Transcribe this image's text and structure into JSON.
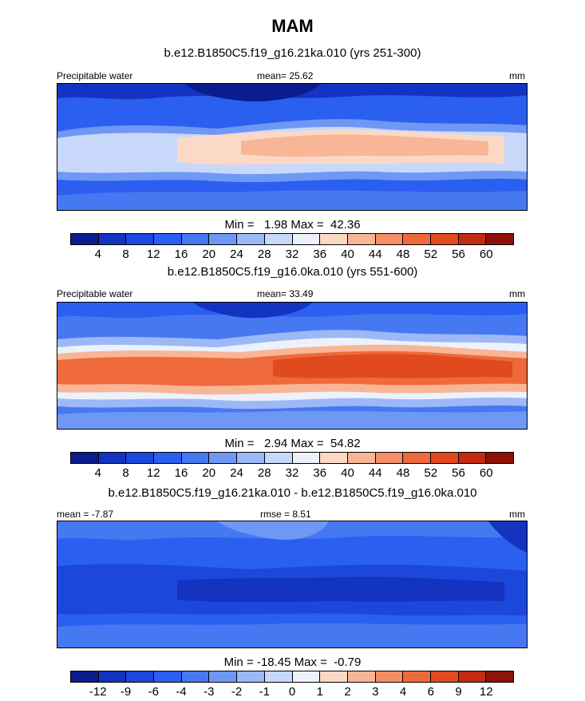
{
  "header": {
    "title": "MAM"
  },
  "units": "mm",
  "panels": [
    {
      "title": "b.e12.B1850C5.f19_g16.21ka.010 (yrs 251-300)",
      "left_label": "Precipitable water",
      "center_label": "mean=  25.62",
      "right_label": "mm",
      "minmax": "Min =   1.98 Max =  42.36"
    },
    {
      "title": "b.e12.B1850C5.f19_g16.0ka.010 (yrs 551-600)",
      "left_label": "Precipitable water",
      "center_label": "mean=  33.49",
      "right_label": "mm",
      "minmax": "Min =   2.94 Max =  54.82"
    },
    {
      "title": "b.e12.B1850C5.f19_g16.21ka.010 - b.e12.B1850C5.f19_g16.0ka.010",
      "left_label": "mean =  -7.87",
      "center_label": "rmse =   8.51",
      "right_label": "mm",
      "minmax": "Min = -18.45 Max =  -0.79"
    }
  ],
  "colorbars": [
    {
      "levels": [
        "4",
        "8",
        "12",
        "16",
        "20",
        "24",
        "28",
        "32",
        "36",
        "40",
        "44",
        "48",
        "52",
        "56",
        "60"
      ],
      "colors": [
        "#0a1c8e",
        "#1333c0",
        "#1b47dc",
        "#2a5ff0",
        "#4678f2",
        "#6f97f4",
        "#9cb8f7",
        "#c8d8fa",
        "#ecf1fc",
        "#fbd9c6",
        "#f8b696",
        "#f48e66",
        "#ee6a3c",
        "#e04a1e",
        "#c22b12",
        "#8e1208"
      ]
    },
    {
      "levels": [
        "4",
        "8",
        "12",
        "16",
        "20",
        "24",
        "28",
        "32",
        "36",
        "40",
        "44",
        "48",
        "52",
        "56",
        "60"
      ],
      "colors": [
        "#0a1c8e",
        "#1333c0",
        "#1b47dc",
        "#2a5ff0",
        "#4678f2",
        "#6f97f4",
        "#9cb8f7",
        "#c8d8fa",
        "#ecf1fc",
        "#fbd9c6",
        "#f8b696",
        "#f48e66",
        "#ee6a3c",
        "#e04a1e",
        "#c22b12",
        "#8e1208"
      ]
    },
    {
      "levels": [
        "-12",
        "-9",
        "-6",
        "-4",
        "-3",
        "-2",
        "-1",
        "0",
        "1",
        "2",
        "3",
        "4",
        "6",
        "9",
        "12"
      ],
      "colors": [
        "#0a1c8e",
        "#1333c0",
        "#1b47dc",
        "#2a5ff0",
        "#4678f2",
        "#6f97f4",
        "#9cb8f7",
        "#c8d8fa",
        "#ecf1fc",
        "#fbd9c6",
        "#f8b696",
        "#f48e66",
        "#ee6a3c",
        "#e04a1e",
        "#c22b12",
        "#8e1208"
      ]
    }
  ],
  "chart_data": [
    {
      "type": "heatmap",
      "title": "b.e12.B1850C5.f19_g16.21ka.010 (yrs 251-300)",
      "variable": "Precipitable water",
      "units": "mm",
      "mean": 25.62,
      "min": 1.98,
      "max": 42.36,
      "contour_levels": [
        4,
        8,
        12,
        16,
        20,
        24,
        28,
        32,
        36,
        40,
        44,
        48,
        52,
        56,
        60
      ]
    },
    {
      "type": "heatmap",
      "title": "b.e12.B1850C5.f19_g16.0ka.010 (yrs 551-600)",
      "variable": "Precipitable water",
      "units": "mm",
      "mean": 33.49,
      "min": 2.94,
      "max": 54.82,
      "contour_levels": [
        4,
        8,
        12,
        16,
        20,
        24,
        28,
        32,
        36,
        40,
        44,
        48,
        52,
        56,
        60
      ]
    },
    {
      "type": "heatmap",
      "title": "b.e12.B1850C5.f19_g16.21ka.010 - b.e12.B1850C5.f19_g16.0ka.010",
      "units": "mm",
      "mean": -7.87,
      "rmse": 8.51,
      "min": -18.45,
      "max": -0.79,
      "contour_levels": [
        -12,
        -9,
        -6,
        -4,
        -3,
        -2,
        -1,
        0,
        1,
        2,
        3,
        4,
        6,
        9,
        12
      ]
    }
  ]
}
